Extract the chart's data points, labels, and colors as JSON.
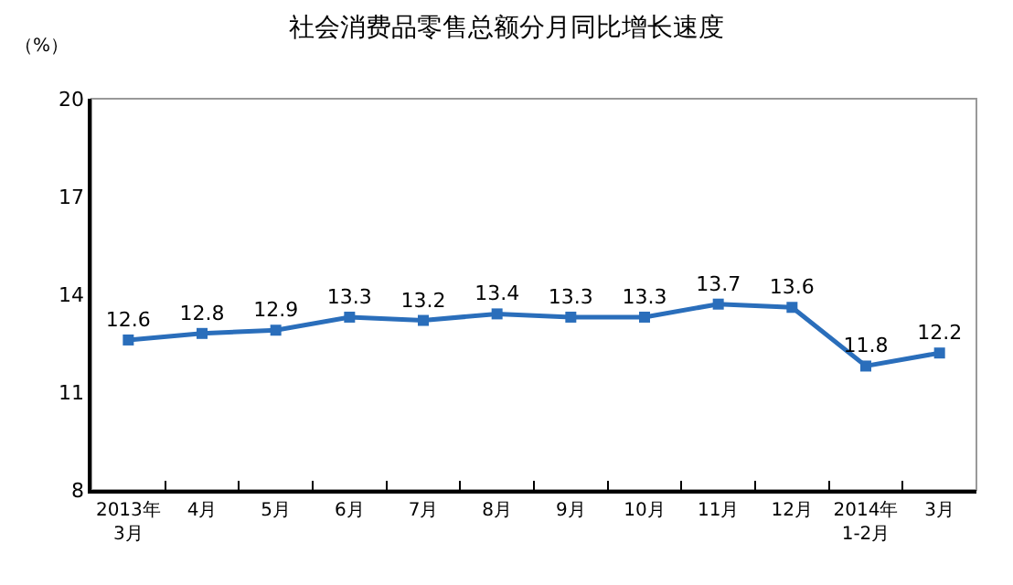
{
  "chart_data": {
    "type": "line",
    "title": "社会消费品零售总额分月同比增长速度",
    "ylabel": "（%）",
    "categories": [
      "2013年\n3月",
      "4月",
      "5月",
      "6月",
      "7月",
      "8月",
      "9月",
      "10月",
      "11月",
      "12月",
      "2014年\n1-2月",
      "3月"
    ],
    "series": [
      {
        "color": "#2a6ebb",
        "values": [
          12.6,
          12.8,
          12.9,
          13.3,
          13.2,
          13.4,
          13.3,
          13.3,
          13.7,
          13.6,
          11.8,
          12.2
        ]
      }
    ],
    "ylim": [
      8,
      20
    ],
    "yticks": [
      8,
      11,
      14,
      17,
      20
    ],
    "grid": false,
    "legend": false,
    "marker": "square",
    "line_style": "solid",
    "data_labels": true
  }
}
